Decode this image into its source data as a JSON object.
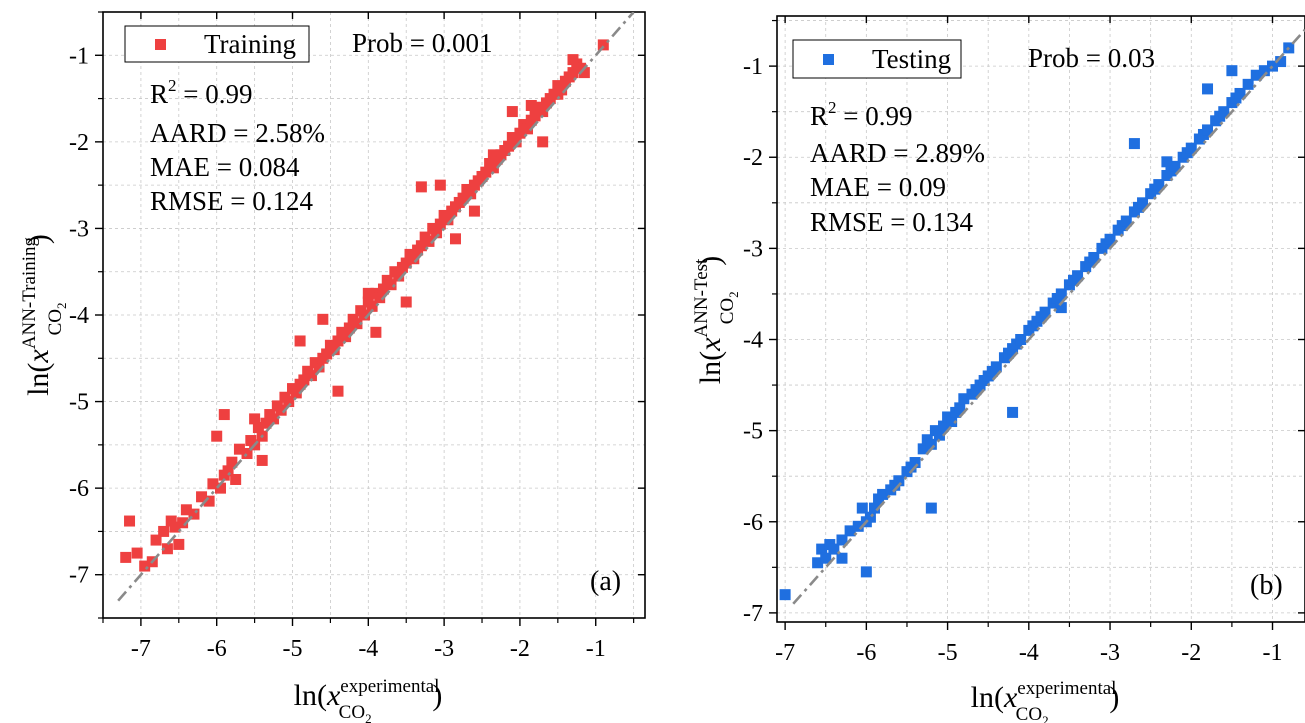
{
  "chart_data": [
    {
      "type": "scatter",
      "panel_label": "(a)",
      "x": [
        -7.2,
        -7.05,
        -6.95,
        -6.85,
        -6.8,
        -6.7,
        -6.65,
        -6.55,
        -6.5,
        -6.45,
        -6.4,
        -6.3,
        -6.2,
        -6.1,
        -6.05,
        -5.95,
        -5.9,
        -5.85,
        -5.8,
        -5.75,
        -5.7,
        -5.6,
        -5.55,
        -5.5,
        -5.45,
        -5.4,
        -5.35,
        -5.3,
        -5.25,
        -5.2,
        -5.15,
        -5.1,
        -5.05,
        -5.0,
        -4.95,
        -4.9,
        -4.85,
        -4.8,
        -4.75,
        -4.7,
        -4.65,
        -4.6,
        -4.55,
        -4.5,
        -4.45,
        -4.4,
        -4.35,
        -4.3,
        -4.25,
        -4.2,
        -4.15,
        -4.1,
        -4.05,
        -4.0,
        -3.95,
        -3.9,
        -3.85,
        -3.8,
        -3.75,
        -3.7,
        -3.65,
        -3.6,
        -3.55,
        -3.5,
        -3.45,
        -3.4,
        -3.35,
        -3.3,
        -3.25,
        -3.2,
        -3.15,
        -3.1,
        -3.05,
        -3.0,
        -2.95,
        -2.9,
        -2.85,
        -2.8,
        -2.75,
        -2.7,
        -2.65,
        -2.6,
        -2.55,
        -2.5,
        -2.45,
        -2.4,
        -2.35,
        -2.3,
        -2.25,
        -2.2,
        -2.15,
        -2.1,
        -2.05,
        -2.0,
        -1.95,
        -1.9,
        -1.85,
        -1.8,
        -1.75,
        -1.7,
        -1.65,
        -1.6,
        -1.55,
        -1.5,
        -1.45,
        -1.4,
        -1.35,
        -1.3,
        -1.25,
        -1.2,
        -1.15,
        -0.9,
        -7.15,
        -6.6,
        -5.9,
        -5.4,
        -4.9,
        -4.4,
        -3.9,
        -3.3,
        -2.85,
        -2.35,
        -1.85,
        -1.5,
        -6.0,
        -5.5,
        -4.6,
        -4.0,
        -3.5,
        -3.05,
        -2.6,
        -2.1,
        -1.7,
        -1.3
      ],
      "y": [
        -6.8,
        -6.75,
        -6.9,
        -6.85,
        -6.6,
        -6.5,
        -6.7,
        -6.45,
        -6.65,
        -6.4,
        -6.25,
        -6.3,
        -6.1,
        -6.15,
        -5.95,
        -6.0,
        -5.85,
        -5.8,
        -5.7,
        -5.9,
        -5.55,
        -5.6,
        -5.45,
        -5.5,
        -5.3,
        -5.4,
        -5.25,
        -5.15,
        -5.2,
        -5.05,
        -5.1,
        -4.95,
        -5.0,
        -4.85,
        -4.9,
        -4.8,
        -4.75,
        -4.65,
        -4.7,
        -4.55,
        -4.6,
        -4.5,
        -4.45,
        -4.35,
        -4.4,
        -4.3,
        -4.2,
        -4.25,
        -4.15,
        -4.05,
        -4.1,
        -3.95,
        -4.0,
        -3.85,
        -3.9,
        -3.75,
        -3.8,
        -3.7,
        -3.6,
        -3.65,
        -3.5,
        -3.55,
        -3.45,
        -3.4,
        -3.3,
        -3.35,
        -3.25,
        -3.2,
        -3.1,
        -3.15,
        -3.0,
        -3.05,
        -2.95,
        -2.85,
        -2.9,
        -2.8,
        -2.75,
        -2.7,
        -2.65,
        -2.55,
        -2.6,
        -2.5,
        -2.45,
        -2.4,
        -2.35,
        -2.25,
        -2.3,
        -2.2,
        -2.15,
        -2.1,
        -2.05,
        -1.95,
        -2.0,
        -1.9,
        -1.8,
        -1.85,
        -1.75,
        -1.7,
        -1.6,
        -1.65,
        -1.55,
        -1.5,
        -1.45,
        -1.35,
        -1.4,
        -1.3,
        -1.25,
        -1.2,
        -1.1,
        -1.15,
        -1.2,
        -0.88,
        -6.38,
        -6.38,
        -5.15,
        -5.68,
        -4.3,
        -4.88,
        -4.2,
        -2.52,
        -3.12,
        -2.15,
        -1.58,
        -1.45,
        -5.4,
        -5.2,
        -4.05,
        -3.75,
        -3.85,
        -2.5,
        -2.8,
        -1.65,
        -2.0,
        -1.05
      ],
      "series_name": "Training",
      "color": "#ee4040",
      "annotations": [
        "Prob = 0.001",
        "R",
        "2",
        " = 0.99",
        "AARD = 2.58%",
        "MAE = 0.084",
        "RMSE = 0.124"
      ],
      "xlim": [
        -7.5,
        -0.35
      ],
      "ylim": [
        -7.5,
        -0.5
      ],
      "xticks": [
        -7,
        -6,
        -5,
        -4,
        -3,
        -2,
        -1
      ],
      "yticks": [
        -7,
        -6,
        -5,
        -4,
        -3,
        -2,
        -1
      ],
      "xlabel": {
        "prefix": "ln(",
        "var": "x",
        "sup": "experimental",
        "sub": "CO",
        "sub2": "2",
        "suffix": ")"
      },
      "ylabel": {
        "prefix": "ln(",
        "var": "x",
        "sup": "ANN-Training",
        "sub": "CO",
        "sub2": "2",
        "suffix": ")"
      },
      "grid": true,
      "legend_position": "top-left",
      "reference_line": "y = x (dash-dot, gray)"
    },
    {
      "type": "scatter",
      "panel_label": "(b)",
      "x": [
        -7.0,
        -6.6,
        -6.55,
        -6.5,
        -6.45,
        -6.4,
        -6.3,
        -6.2,
        -6.1,
        -6.05,
        -6.0,
        -5.95,
        -5.9,
        -5.85,
        -5.8,
        -5.7,
        -5.65,
        -5.6,
        -5.5,
        -5.45,
        -5.4,
        -5.3,
        -5.25,
        -5.2,
        -5.15,
        -5.1,
        -5.05,
        -5.0,
        -4.95,
        -4.9,
        -4.85,
        -4.8,
        -4.7,
        -4.65,
        -4.6,
        -4.55,
        -4.5,
        -4.45,
        -4.4,
        -4.3,
        -4.25,
        -4.2,
        -4.15,
        -4.1,
        -4.0,
        -3.95,
        -3.9,
        -3.85,
        -3.8,
        -3.7,
        -3.65,
        -3.6,
        -3.5,
        -3.45,
        -3.4,
        -3.3,
        -3.25,
        -3.2,
        -3.1,
        -3.05,
        -3.0,
        -2.9,
        -2.85,
        -2.8,
        -2.7,
        -2.65,
        -2.6,
        -2.5,
        -2.45,
        -2.4,
        -2.3,
        -2.25,
        -2.2,
        -2.1,
        -2.05,
        -2.0,
        -1.9,
        -1.85,
        -1.8,
        -1.7,
        -1.65,
        -1.6,
        -1.5,
        -1.45,
        -1.4,
        -1.3,
        -1.2,
        -1.1,
        -1.0,
        -0.9,
        -0.8,
        -6.3,
        -6.0,
        -5.2,
        -4.2,
        -3.6,
        -2.7,
        -1.5,
        -1.8,
        -2.3
      ],
      "y": [
        -6.8,
        -6.45,
        -6.3,
        -6.4,
        -6.25,
        -6.3,
        -6.2,
        -6.1,
        -6.05,
        -5.85,
        -6.0,
        -5.95,
        -5.85,
        -5.75,
        -5.7,
        -5.65,
        -5.6,
        -5.55,
        -5.45,
        -5.4,
        -5.35,
        -5.2,
        -5.1,
        -5.15,
        -5.0,
        -5.05,
        -4.95,
        -4.85,
        -4.9,
        -4.8,
        -4.75,
        -4.65,
        -4.6,
        -4.55,
        -4.5,
        -4.45,
        -4.4,
        -4.35,
        -4.3,
        -4.2,
        -4.15,
        -4.1,
        -4.05,
        -4.0,
        -3.9,
        -3.85,
        -3.8,
        -3.75,
        -3.7,
        -3.6,
        -3.55,
        -3.5,
        -3.4,
        -3.35,
        -3.3,
        -3.2,
        -3.15,
        -3.1,
        -3.0,
        -2.95,
        -2.9,
        -2.8,
        -2.75,
        -2.7,
        -2.6,
        -2.55,
        -2.5,
        -2.4,
        -2.35,
        -2.3,
        -2.2,
        -2.15,
        -2.1,
        -2.0,
        -1.95,
        -1.9,
        -1.8,
        -1.75,
        -1.7,
        -1.6,
        -1.55,
        -1.5,
        -1.4,
        -1.35,
        -1.3,
        -1.2,
        -1.1,
        -1.05,
        -1.0,
        -0.95,
        -0.8,
        -6.4,
        -6.55,
        -5.85,
        -4.8,
        -3.65,
        -1.85,
        -1.05,
        -1.25,
        -2.05
      ],
      "series_name": "Testing",
      "color": "#1f6fe0",
      "annotations": [
        "Prob = 0.03",
        "R",
        "2",
        " = 0.99",
        "AARD = 2.89%",
        "MAE = 0.09",
        "RMSE = 0.134"
      ],
      "xlim": [
        -7.1,
        -0.6
      ],
      "ylim": [
        -7.1,
        -0.45
      ],
      "xticks": [
        -7,
        -6,
        -5,
        -4,
        -3,
        -2,
        -1
      ],
      "yticks": [
        -7,
        -6,
        -5,
        -4,
        -3,
        -2,
        -1
      ],
      "xlabel": {
        "prefix": "ln(",
        "var": "x",
        "sup": "experimental",
        "sub": "CO",
        "sub2": "2",
        "suffix": ")"
      },
      "ylabel": {
        "prefix": "ln(",
        "var": "x",
        "sup": "ANN-Test",
        "sub": "CO",
        "sub2": "2",
        "suffix": ")"
      },
      "grid": true,
      "legend_position": "top-left",
      "reference_line": "y = x (dash-dot, gray)"
    }
  ]
}
